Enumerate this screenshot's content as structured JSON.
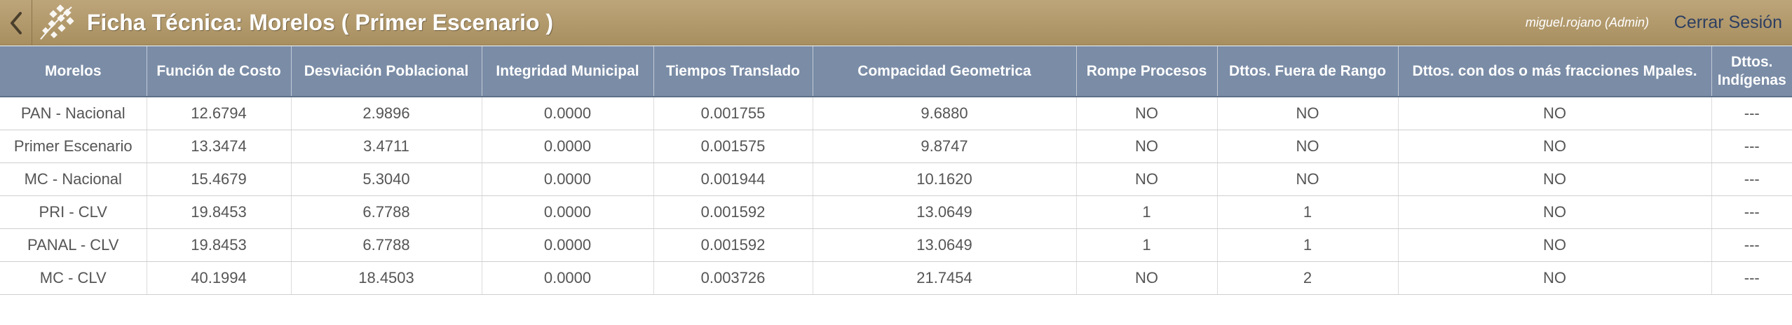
{
  "header": {
    "title": "Ficha Técnica: Morelos ( Primer Escenario )",
    "user": "miguel.rojano (Admin)",
    "logout_label": "Cerrar Sesión",
    "back_icon": "chevron-left-icon",
    "logo_icon": "institution-logo-icon"
  },
  "colors": {
    "header_bg": "#b39a6c",
    "table_header_bg": "#7a8ca6",
    "logout_text": "#2e3f61"
  },
  "table": {
    "columns": [
      "Morelos",
      "Función de Costo",
      "Desviación Poblacional",
      "Integridad Municipal",
      "Tiempos Translado",
      "Compacidad Geometrica",
      "Rompe Procesos",
      "Dttos. Fuera de Rango",
      "Dttos. con dos o más fracciones Mpales.",
      "Dttos. Indígenas"
    ],
    "rows": [
      [
        "PAN - Nacional",
        "12.6794",
        "2.9896",
        "0.0000",
        "0.001755",
        "9.6880",
        "NO",
        "NO",
        "NO",
        "---"
      ],
      [
        "Primer Escenario",
        "13.3474",
        "3.4711",
        "0.0000",
        "0.001575",
        "9.8747",
        "NO",
        "NO",
        "NO",
        "---"
      ],
      [
        "MC - Nacional",
        "15.4679",
        "5.3040",
        "0.0000",
        "0.001944",
        "10.1620",
        "NO",
        "NO",
        "NO",
        "---"
      ],
      [
        "PRI - CLV",
        "19.8453",
        "6.7788",
        "0.0000",
        "0.001592",
        "13.0649",
        "1",
        "1",
        "NO",
        "---"
      ],
      [
        "PANAL - CLV",
        "19.8453",
        "6.7788",
        "0.0000",
        "0.001592",
        "13.0649",
        "1",
        "1",
        "NO",
        "---"
      ],
      [
        "MC - CLV",
        "40.1994",
        "18.4503",
        "0.0000",
        "0.003726",
        "21.7454",
        "NO",
        "2",
        "NO",
        "---"
      ]
    ]
  }
}
